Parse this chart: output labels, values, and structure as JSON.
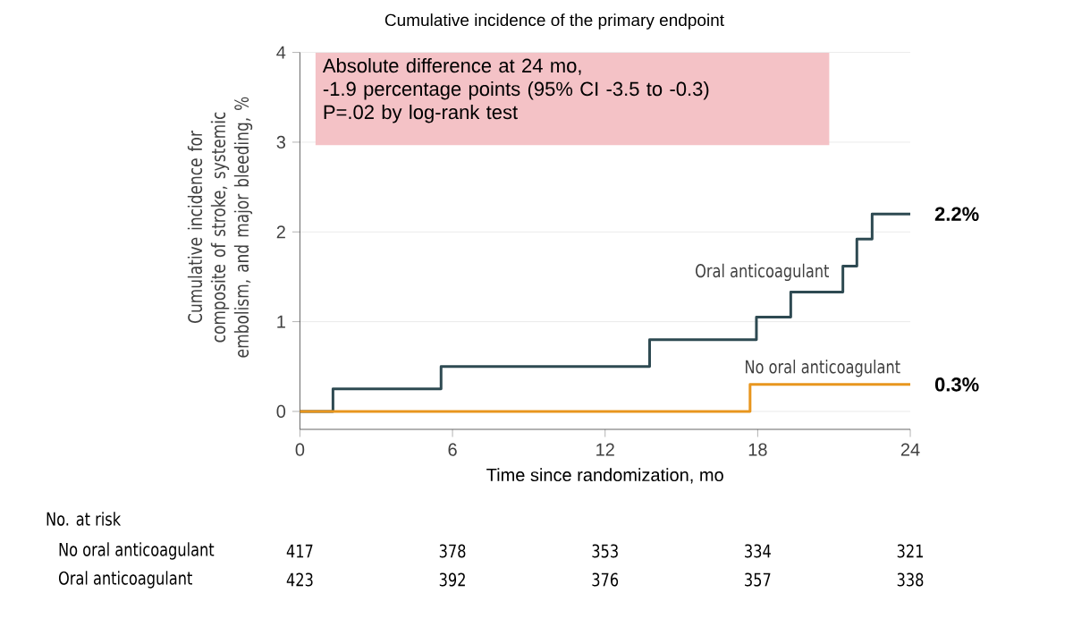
{
  "chart_data": {
    "type": "step",
    "title": "Cumulative incidence of the primary endpoint",
    "xlabel": "Time since randomization, mo",
    "ylabel": "Cumulative incidence for composite of stroke, systemic embolism, and major bleeding, %",
    "series": [
      {
        "name": "Oral anticoagulant",
        "color": "#2e4a52",
        "x": [
          0,
          1.3,
          5.55,
          13.75,
          17.95,
          19.3,
          21.35,
          21.9,
          22.5,
          24
        ],
        "values": [
          0,
          0.25,
          0.5,
          0.8,
          1.05,
          1.33,
          1.62,
          1.92,
          2.2,
          2.2
        ]
      },
      {
        "name": "No oral anticoagulant",
        "color": "#e8961e",
        "x": [
          0,
          17.7,
          24
        ],
        "values": [
          0,
          0.3,
          0.3
        ]
      }
    ],
    "xlim": [
      0,
      24
    ],
    "ylim": [
      -0.2,
      4
    ],
    "xticks": [
      0,
      6,
      12,
      18,
      24
    ],
    "yticks": [
      0,
      1,
      2,
      3,
      4
    ],
    "grid": "y",
    "legend": false,
    "marker": "none",
    "line_style": "solid",
    "annotations": [
      "Absolute difference at 24 mo,",
      "-1.9 percentage points (95% CI -3.5 to -0.3)",
      "P=.02 by log-rank test",
      {
        "text": "2.2%",
        "x": 24,
        "y": 2.2
      },
      {
        "text": "0.3%",
        "x": 24,
        "y": 0.3
      },
      "No. at risk",
      "No oral anticoagulant",
      "417",
      "378",
      "353",
      "334",
      "321",
      "Oral anticoagulant",
      "423",
      "392",
      "376",
      "357",
      "338"
    ]
  }
}
